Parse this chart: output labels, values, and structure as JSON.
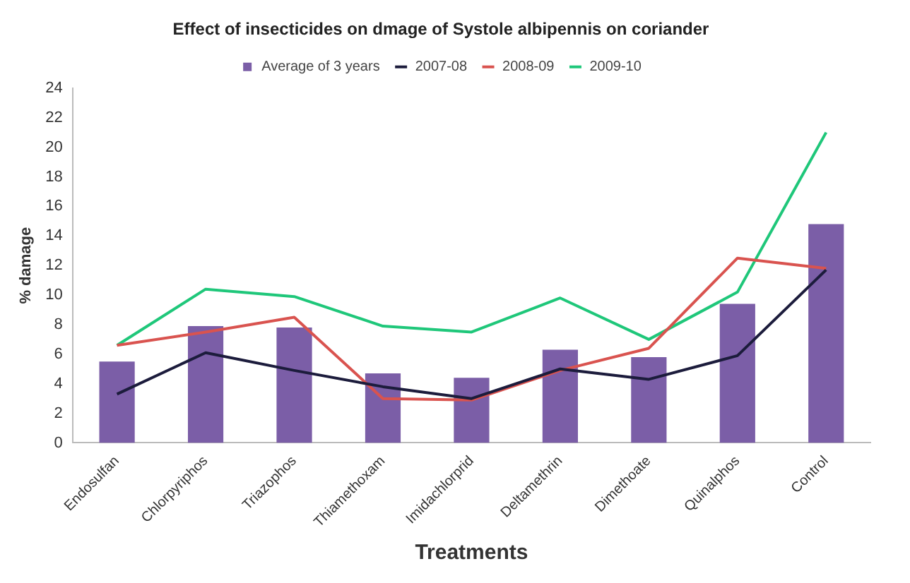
{
  "chart_data": {
    "type": "bar",
    "title": "Effect of insecticides on dmage of Systole albipennis on coriander",
    "xlabel": "Treatments",
    "ylabel": "% damage",
    "categories": [
      "Endosulfan",
      "Chlorpyriphos",
      "Triazophos",
      "Thiamethoxam",
      "Imidachlorprid",
      "Deltamethrin",
      "Dimethoate",
      "Quinalphos",
      "Control"
    ],
    "series": [
      {
        "name": "Average of 3 years",
        "color": "#7b5ea7",
        "values": [
          5.5,
          7.9,
          7.8,
          4.7,
          4.4,
          6.3,
          5.8,
          9.4,
          14.8
        ]
      },
      {
        "name": "2007-08",
        "type": "line",
        "color": "#1c1c3c",
        "values": [
          3.3,
          6.1,
          4.9,
          3.8,
          3.0,
          5.0,
          4.3,
          5.9,
          11.7
        ]
      },
      {
        "name": "2008-09",
        "type": "line",
        "color": "#d9534f",
        "values": [
          6.6,
          7.5,
          8.5,
          3.0,
          2.9,
          4.9,
          6.4,
          12.5,
          11.8
        ]
      },
      {
        "name": "2009-10",
        "type": "line",
        "color": "#1fc77a",
        "values": [
          6.6,
          10.4,
          9.9,
          7.9,
          7.5,
          9.8,
          7.0,
          10.2,
          21.0
        ]
      }
    ],
    "ylim": [
      0,
      24
    ],
    "yticks": [
      0,
      2,
      4,
      6,
      8,
      10,
      12,
      14,
      16,
      18,
      20,
      22,
      24
    ],
    "grid": false,
    "legend": "top",
    "marker": "none",
    "line_style": "solid"
  }
}
